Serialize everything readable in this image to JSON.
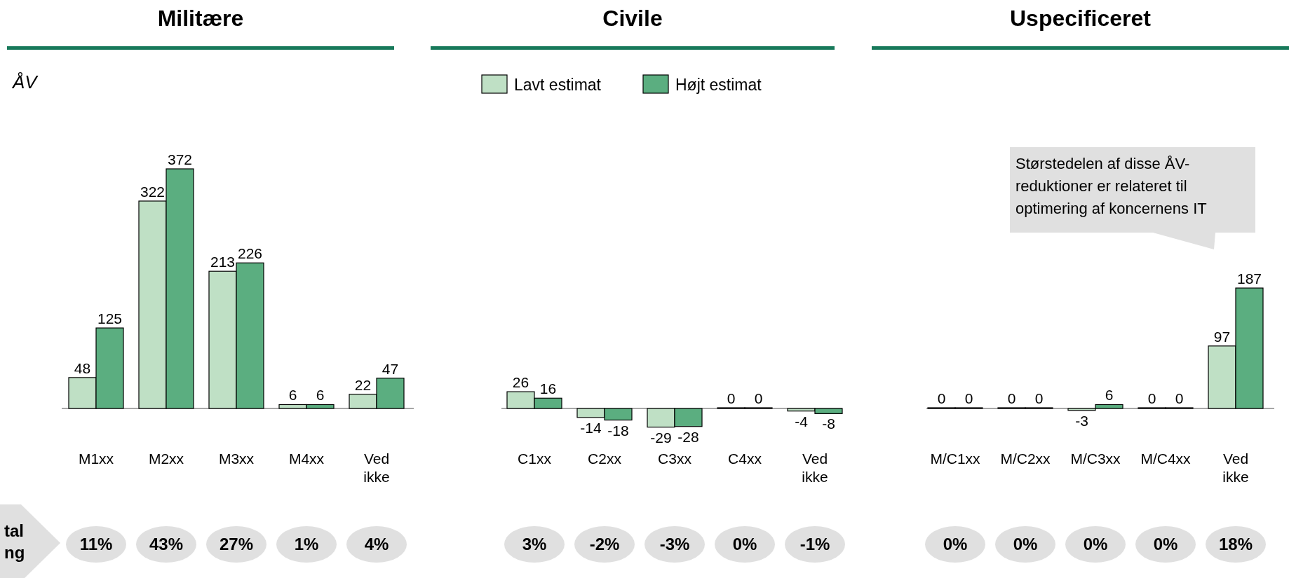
{
  "chart_data": [
    {
      "type": "bar",
      "title": "Militære",
      "ylabel": "ÅV",
      "categories": [
        "M1xx",
        "M2xx",
        "M3xx",
        "M4xx",
        "Ved ikke"
      ],
      "series": [
        {
          "color": "#bfe0c5",
          "values": [
            48,
            322,
            213,
            6,
            22
          ]
        },
        {
          "color": "#5bae80",
          "values": [
            125,
            372,
            226,
            6,
            47
          ]
        }
      ],
      "data_labels": true,
      "legend": false,
      "annotations": [
        "tal\nng",
        "11%",
        "43%",
        "27%",
        "1%",
        "4%"
      ]
    },
    {
      "type": "bar",
      "title": "Civile",
      "categories": [
        "C1xx",
        "C2xx",
        "C3xx",
        "C4xx",
        "Ved ikke"
      ],
      "series": [
        {
          "name": "Lavt estimat",
          "color": "#bfe0c5",
          "values": [
            26,
            -14,
            -29,
            0,
            -4
          ]
        },
        {
          "name": "Højt estimat",
          "color": "#5bae80",
          "values": [
            16,
            -18,
            -28,
            0,
            -8
          ]
        }
      ],
      "data_labels": true,
      "legend": "top",
      "annotations": [
        "3%",
        "-2%",
        "-3%",
        "0%",
        "-1%"
      ]
    },
    {
      "type": "bar",
      "title": "Uspecificeret",
      "categories": [
        "M/C1xx",
        "M/C2xx",
        "M/C3xx",
        "M/C4xx",
        "Ved ikke"
      ],
      "series": [
        {
          "color": "#bfe0c5",
          "values": [
            0,
            0,
            -3,
            0,
            97
          ]
        },
        {
          "color": "#5bae80",
          "values": [
            0,
            0,
            6,
            0,
            187
          ]
        }
      ],
      "data_labels": true,
      "legend": false,
      "annotations": [
        "Størstedelen af disse ÅV-\nreduktioner er relateret til\noptimering af koncernens IT",
        "0%",
        "0%",
        "0%",
        "0%",
        "18%"
      ]
    }
  ]
}
